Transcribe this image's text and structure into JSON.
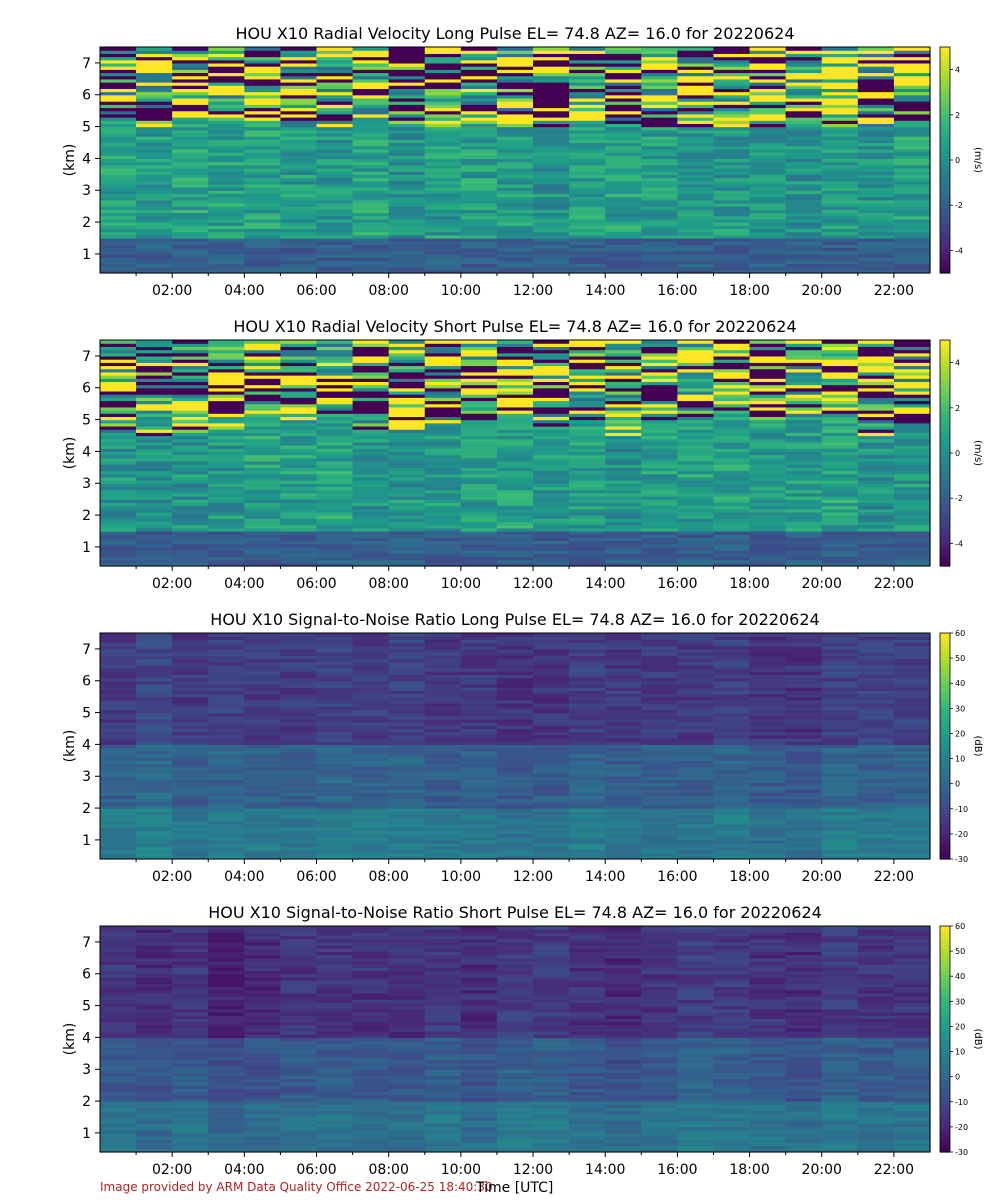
{
  "figure": {
    "credit": "Image provided by ARM Data Quality Office 2022-06-25 18:40:30",
    "xlabel": "Time [UTC]"
  },
  "chart_data": [
    {
      "type": "heatmap",
      "title": "HOU X10 Radial Velocity Long Pulse EL= 74.8 AZ= 16.0 for 20220624",
      "ylabel": "(km)",
      "colorbar_label": "(m/s)",
      "x_ticks": [
        "02:00",
        "04:00",
        "06:00",
        "08:00",
        "10:00",
        "12:00",
        "14:00",
        "16:00",
        "18:00",
        "20:00",
        "22:00"
      ],
      "x_tick_hours": [
        2,
        4,
        6,
        8,
        10,
        12,
        14,
        16,
        18,
        20,
        22
      ],
      "xlim_hours": [
        0,
        23
      ],
      "y_ticks": [
        1,
        2,
        3,
        4,
        5,
        6,
        7
      ],
      "ylim": [
        0.4,
        7.5
      ],
      "colorbar_ticks": [
        4,
        2,
        0,
        -2,
        -4
      ],
      "clim": [
        -5,
        5
      ],
      "colormap": "viridis",
      "variable": "velocity"
    },
    {
      "type": "heatmap",
      "title": "HOU X10 Radial Velocity Short Pulse EL= 74.8 AZ= 16.0 for 20220624",
      "ylabel": "(km)",
      "colorbar_label": "(m/s)",
      "x_ticks": [
        "02:00",
        "04:00",
        "06:00",
        "08:00",
        "10:00",
        "12:00",
        "14:00",
        "16:00",
        "18:00",
        "20:00",
        "22:00"
      ],
      "x_tick_hours": [
        2,
        4,
        6,
        8,
        10,
        12,
        14,
        16,
        18,
        20,
        22
      ],
      "xlim_hours": [
        0,
        23
      ],
      "y_ticks": [
        1,
        2,
        3,
        4,
        5,
        6,
        7
      ],
      "ylim": [
        0.4,
        7.5
      ],
      "colorbar_ticks": [
        4,
        2,
        0,
        -2,
        -4
      ],
      "clim": [
        -5,
        5
      ],
      "colormap": "viridis",
      "variable": "velocity"
    },
    {
      "type": "heatmap",
      "title": "HOU X10 Signal-to-Noise Ratio Long Pulse EL= 74.8 AZ= 16.0 for 20220624",
      "ylabel": "(km)",
      "colorbar_label": "(dB)",
      "x_ticks": [
        "02:00",
        "04:00",
        "06:00",
        "08:00",
        "10:00",
        "12:00",
        "14:00",
        "16:00",
        "18:00",
        "20:00",
        "22:00"
      ],
      "x_tick_hours": [
        2,
        4,
        6,
        8,
        10,
        12,
        14,
        16,
        18,
        20,
        22
      ],
      "xlim_hours": [
        0,
        23
      ],
      "y_ticks": [
        1,
        2,
        3,
        4,
        5,
        6,
        7
      ],
      "ylim": [
        0.4,
        7.5
      ],
      "colorbar_ticks": [
        60,
        50,
        40,
        30,
        20,
        10,
        0,
        -10,
        -20,
        -30
      ],
      "clim": [
        -30,
        60
      ],
      "colormap": "viridis",
      "variable": "snr"
    },
    {
      "type": "heatmap",
      "title": "HOU X10 Signal-to-Noise Ratio Short Pulse EL= 74.8 AZ= 16.0 for 20220624",
      "ylabel": "(km)",
      "colorbar_label": "(dB)",
      "x_ticks": [
        "02:00",
        "04:00",
        "06:00",
        "08:00",
        "10:00",
        "12:00",
        "14:00",
        "16:00",
        "18:00",
        "20:00",
        "22:00"
      ],
      "x_tick_hours": [
        2,
        4,
        6,
        8,
        10,
        12,
        14,
        16,
        18,
        20,
        22
      ],
      "xlim_hours": [
        0,
        23
      ],
      "y_ticks": [
        1,
        2,
        3,
        4,
        5,
        6,
        7
      ],
      "ylim": [
        0.4,
        7.5
      ],
      "colorbar_ticks": [
        60,
        50,
        40,
        30,
        20,
        10,
        0,
        -10,
        -20,
        -30
      ],
      "clim": [
        -30,
        60
      ],
      "colormap": "viridis",
      "variable": "snr"
    }
  ]
}
